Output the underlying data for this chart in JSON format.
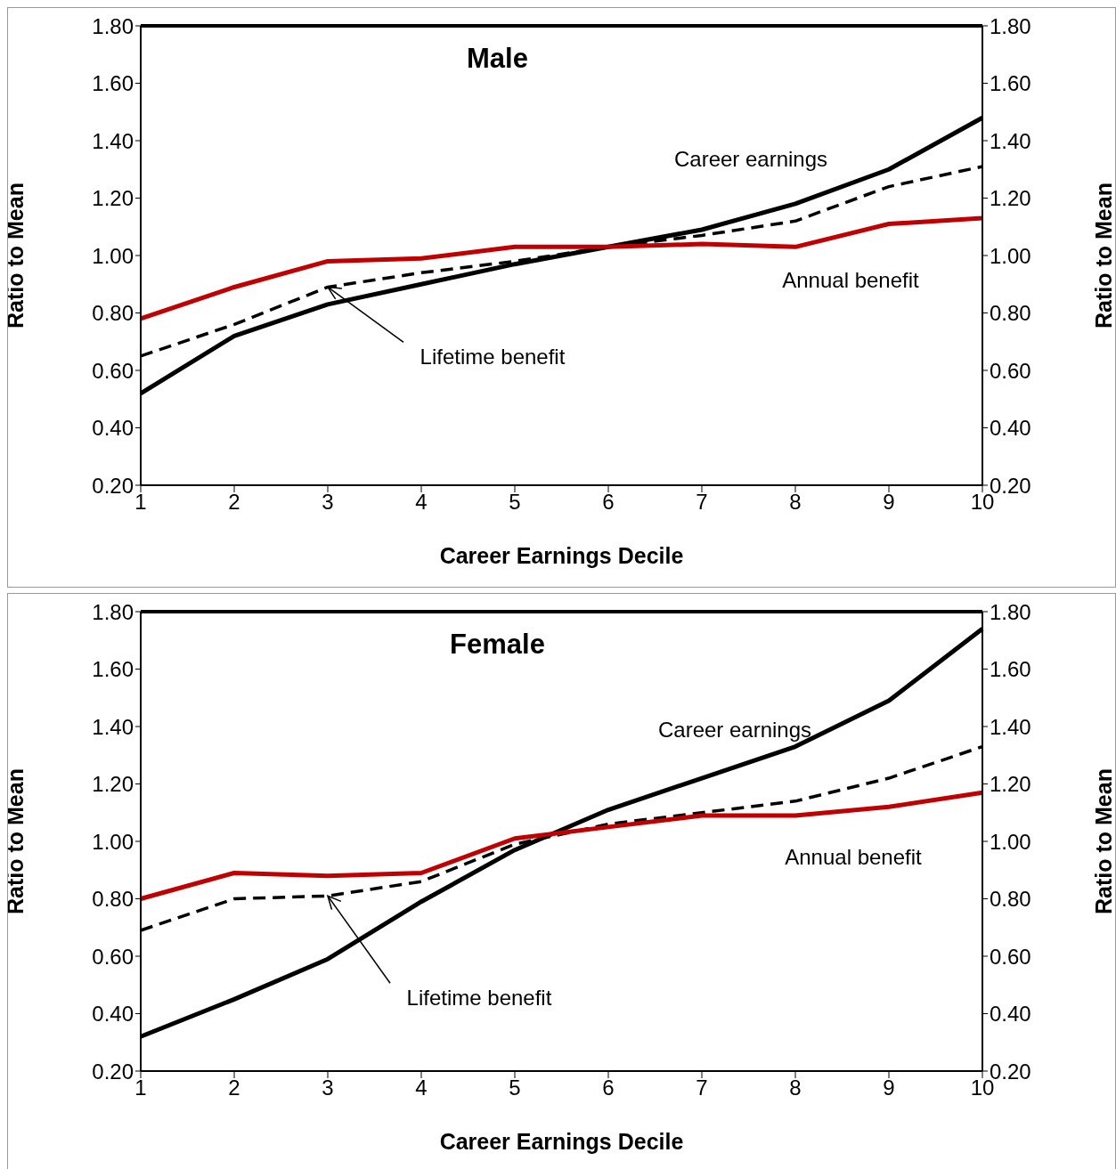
{
  "chart_data": [
    {
      "type": "line",
      "title": "Male",
      "categories": [
        "1",
        "2",
        "3",
        "4",
        "5",
        "6",
        "7",
        "8",
        "9",
        "10"
      ],
      "series": [
        {
          "color": "#000000",
          "line_style": "solid",
          "values": [
            0.52,
            0.72,
            0.83,
            0.9,
            0.97,
            1.03,
            1.09,
            1.18,
            1.3,
            1.48
          ]
        },
        {
          "color": "#000000",
          "line_style": "dashed",
          "values": [
            0.65,
            0.76,
            0.89,
            0.94,
            0.98,
            1.03,
            1.07,
            1.12,
            1.24,
            1.31
          ]
        },
        {
          "color": "#c00000",
          "line_style": "solid",
          "values": [
            0.78,
            0.89,
            0.98,
            0.99,
            1.03,
            1.03,
            1.04,
            1.03,
            1.11,
            1.13
          ]
        }
      ],
      "xlabel": "Career Earnings Decile",
      "ylabel": "Ratio to Mean",
      "y2label": "Ratio to Mean",
      "ylim": [
        0.2,
        1.8
      ],
      "yticks": [
        {
          "value": 0.2,
          "label": "0.20"
        },
        {
          "value": 0.4,
          "label": "0.40"
        },
        {
          "value": 0.6,
          "label": "0.60"
        },
        {
          "value": 0.8,
          "label": "0.80"
        },
        {
          "value": 1.0,
          "label": "1.00"
        },
        {
          "value": 1.2,
          "label": "1.20"
        },
        {
          "value": 1.4,
          "label": "1.40"
        },
        {
          "value": 1.6,
          "label": "1.60"
        },
        {
          "value": 1.8,
          "label": "1.80"
        }
      ],
      "y2lim": [
        0.2,
        1.8
      ],
      "y2ticks": [
        {
          "value": 0.2,
          "label": "0.20"
        },
        {
          "value": 0.4,
          "label": "0.40"
        },
        {
          "value": 0.6,
          "label": "0.60"
        },
        {
          "value": 0.8,
          "label": "0.80"
        },
        {
          "value": 1.0,
          "label": "1.00"
        },
        {
          "value": 1.2,
          "label": "1.20"
        },
        {
          "value": 1.4,
          "label": "1.40"
        },
        {
          "value": 1.6,
          "label": "1.60"
        },
        {
          "value": 1.8,
          "label": "1.80"
        }
      ],
      "annotations": [
        {
          "text": "Career earnings",
          "x": "8",
          "y": 1.18
        },
        {
          "text": "Annual benefit",
          "x": "8",
          "y": 1.03
        },
        {
          "text": "Lifetime benefit",
          "x": "3",
          "y": 0.89
        }
      ],
      "grid": false,
      "legend": false,
      "marker": "none"
    },
    {
      "type": "line",
      "title": "Female",
      "categories": [
        "1",
        "2",
        "3",
        "4",
        "5",
        "6",
        "7",
        "8",
        "9",
        "10"
      ],
      "series": [
        {
          "color": "#000000",
          "line_style": "solid",
          "values": [
            0.32,
            0.45,
            0.59,
            0.79,
            0.97,
            1.11,
            1.22,
            1.33,
            1.49,
            1.74
          ]
        },
        {
          "color": "#000000",
          "line_style": "dashed",
          "values": [
            0.69,
            0.8,
            0.81,
            0.86,
            0.99,
            1.06,
            1.1,
            1.14,
            1.22,
            1.33
          ]
        },
        {
          "color": "#c00000",
          "line_style": "solid",
          "values": [
            0.8,
            0.89,
            0.88,
            0.89,
            1.01,
            1.05,
            1.09,
            1.09,
            1.12,
            1.17
          ]
        }
      ],
      "xlabel": "Career Earnings Decile",
      "ylabel": "Ratio to Mean",
      "y2label": "Ratio to Mean",
      "ylim": [
        0.2,
        1.8
      ],
      "yticks": [
        {
          "value": 0.2,
          "label": "0.20"
        },
        {
          "value": 0.4,
          "label": "0.40"
        },
        {
          "value": 0.6,
          "label": "0.60"
        },
        {
          "value": 0.8,
          "label": "0.80"
        },
        {
          "value": 1.0,
          "label": "1.00"
        },
        {
          "value": 1.2,
          "label": "1.20"
        },
        {
          "value": 1.4,
          "label": "1.40"
        },
        {
          "value": 1.6,
          "label": "1.60"
        },
        {
          "value": 1.8,
          "label": "1.80"
        }
      ],
      "y2lim": [
        0.2,
        1.8
      ],
      "y2ticks": [
        {
          "value": 0.2,
          "label": "0.20"
        },
        {
          "value": 0.4,
          "label": "0.40"
        },
        {
          "value": 0.6,
          "label": "0.60"
        },
        {
          "value": 0.8,
          "label": "0.80"
        },
        {
          "value": 1.0,
          "label": "1.00"
        },
        {
          "value": 1.2,
          "label": "1.20"
        },
        {
          "value": 1.4,
          "label": "1.40"
        },
        {
          "value": 1.6,
          "label": "1.60"
        },
        {
          "value": 1.8,
          "label": "1.80"
        }
      ],
      "annotations": [
        {
          "text": "Career earnings",
          "x": "8",
          "y": 1.33
        },
        {
          "text": "Annual benefit",
          "x": "8",
          "y": 1.09
        },
        {
          "text": "Lifetime benefit",
          "x": "3",
          "y": 0.81
        }
      ],
      "grid": false,
      "legend": false,
      "marker": "none"
    }
  ]
}
